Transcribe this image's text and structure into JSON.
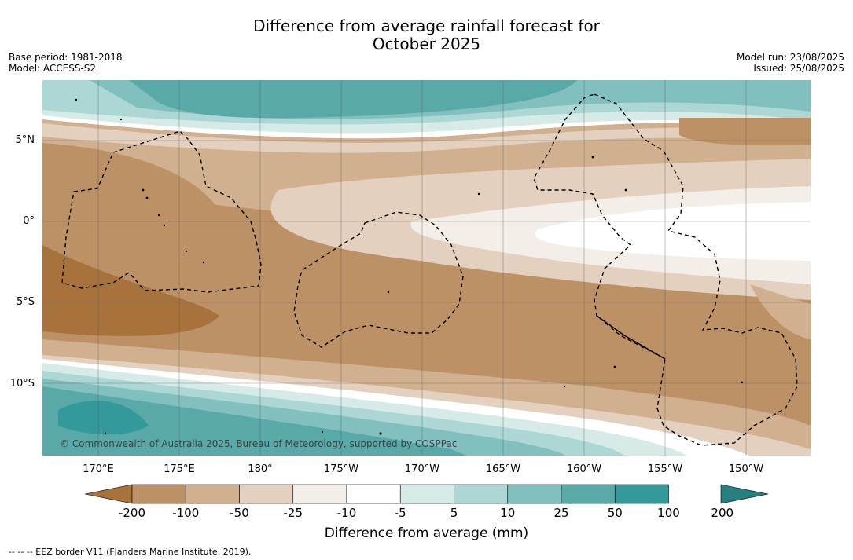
{
  "title_line1": "Difference from average rainfall forecast for",
  "title_line2": "October 2025",
  "base_period": "Base period: 1981-2018",
  "model": "Model: ACCESS-S2",
  "model_run": "Model run: 23/08/2025",
  "issued": "Issued: 25/08/2025",
  "copyright": "© Commonwealth of Australia 2025, Bureau of Meteorology, supported by COSPPac",
  "lat_labels": [
    "5°N",
    "0°",
    "5°S",
    "10°S"
  ],
  "lon_labels": [
    "170°E",
    "175°E",
    "180°",
    "175°W",
    "170°W",
    "165°W",
    "160°W",
    "155°W",
    "150°W"
  ],
  "colorbar": {
    "label": "Difference from average (mm)",
    "ticks": [
      "-200",
      "-100",
      "-50",
      "-25",
      "-10",
      "-5",
      "5",
      "10",
      "25",
      "50",
      "100",
      "200"
    ],
    "colors": [
      "#a8723c",
      "#bd9166",
      "#d1b08f",
      "#e3d0bf",
      "#f3eee7",
      "#ffffff",
      "#d6ebe8",
      "#acd7d5",
      "#82bfbf",
      "#5aa9a9",
      "#33999a",
      "#26807f"
    ]
  },
  "footnote": "-- -- -- EEZ border V11 (Flanders Marine Institute, 2019)."
}
